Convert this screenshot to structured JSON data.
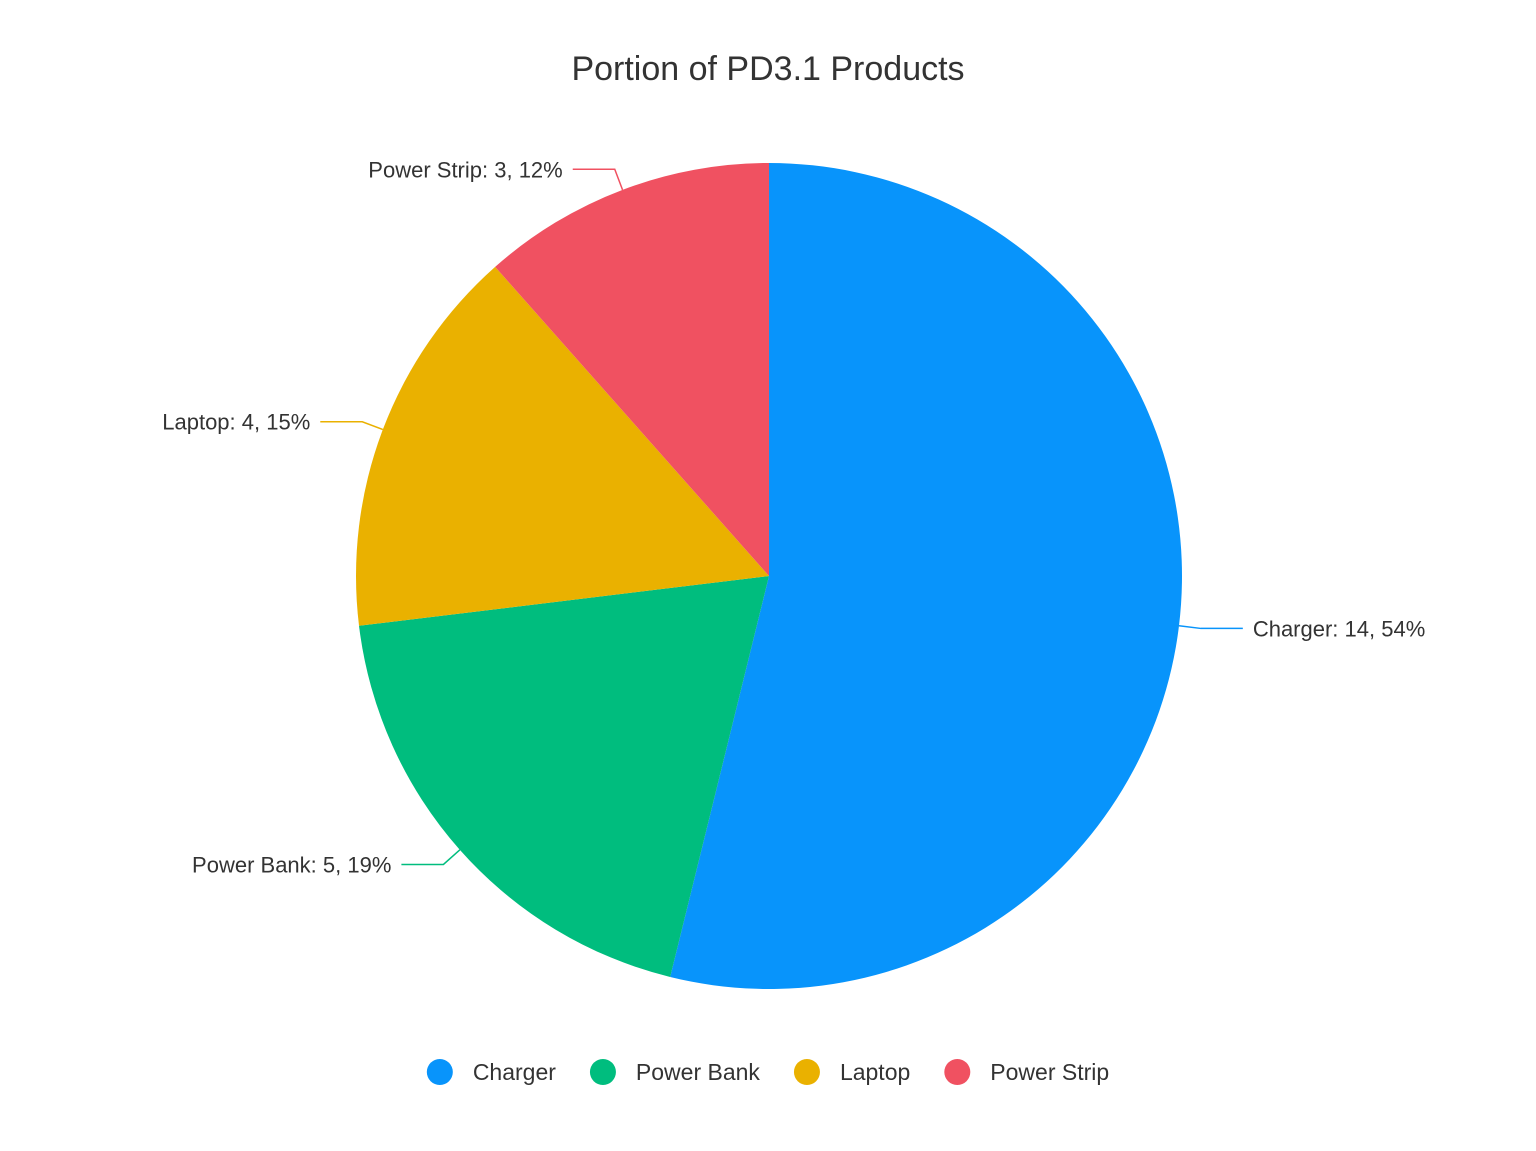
{
  "chart_data": {
    "type": "pie",
    "title": "Portion of PD3.1 Products",
    "series": [
      {
        "name": "",
        "slices": [
          {
            "label": "Charger",
            "value": 14,
            "percent": 54,
            "color": "#0894fb",
            "text": "Charger: 14, 54%"
          },
          {
            "label": "Power Bank",
            "value": 5,
            "percent": 19,
            "color": "#00bd7e",
            "text": "Power Bank: 5, 19%"
          },
          {
            "label": "Laptop",
            "value": 4,
            "percent": 15,
            "color": "#eab100",
            "text": "Laptop: 4, 15%"
          },
          {
            "label": "Power Strip",
            "value": 3,
            "percent": 12,
            "color": "#f05161",
            "text": "Power Strip: 3, 12%"
          }
        ]
      }
    ],
    "legend": {
      "position": "bottom",
      "items": [
        "Charger",
        "Power Bank",
        "Laptop",
        "Power Strip"
      ]
    }
  }
}
